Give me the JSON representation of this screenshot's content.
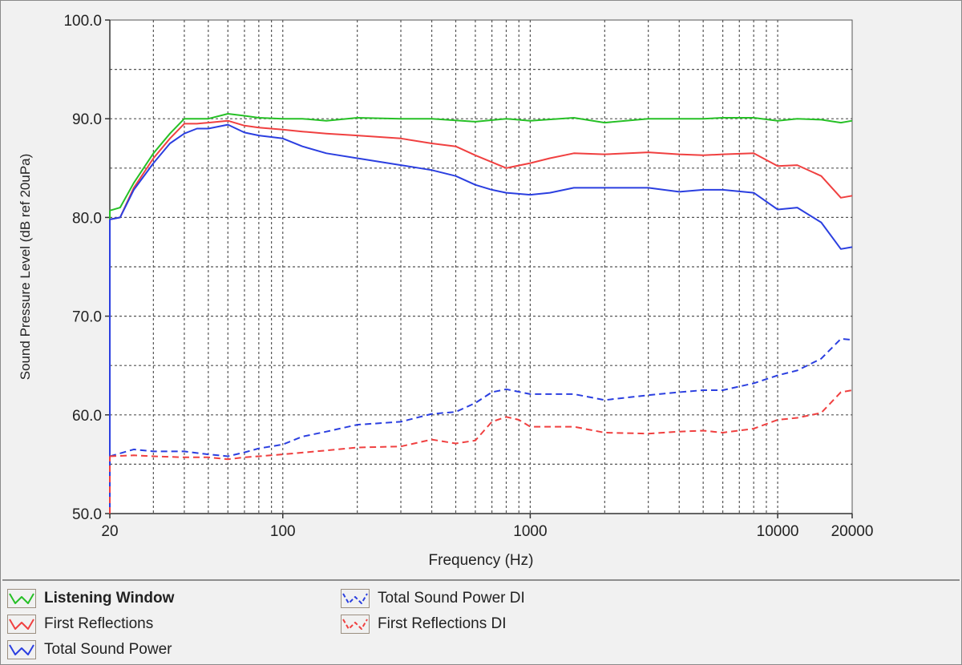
{
  "chart_data": {
    "type": "line",
    "xlabel": "Frequency (Hz)",
    "ylabel": "Sound Pressure Level (dB ref 20uPa)",
    "xscale": "log",
    "xlim": [
      20,
      20000
    ],
    "ylim": [
      50,
      100
    ],
    "grid": true,
    "legend_position": "bottom",
    "x_ticks": [
      20,
      100,
      1000,
      10000,
      20000
    ],
    "x_tick_labels": [
      "20",
      "100",
      "1000",
      "10000",
      "20000"
    ],
    "y_ticks": [
      50,
      60,
      70,
      80,
      90,
      100
    ],
    "y_tick_labels": [
      "50.0",
      "60.0",
      "70.0",
      "80.0",
      "90.0",
      "100.0"
    ],
    "series": [
      {
        "name": "Listening Window",
        "color": "#26c026",
        "style": "solid",
        "bold_label": true,
        "points": [
          [
            20,
            80.7
          ],
          [
            22,
            81
          ],
          [
            25,
            83.5
          ],
          [
            30,
            86.5
          ],
          [
            35,
            88.5
          ],
          [
            40,
            90
          ],
          [
            45,
            90
          ],
          [
            50,
            90
          ],
          [
            60,
            90.5
          ],
          [
            70,
            90.3
          ],
          [
            80,
            90.1
          ],
          [
            100,
            90
          ],
          [
            120,
            90
          ],
          [
            150,
            89.8
          ],
          [
            200,
            90.1
          ],
          [
            300,
            90
          ],
          [
            400,
            90
          ],
          [
            600,
            89.7
          ],
          [
            800,
            90
          ],
          [
            1000,
            89.8
          ],
          [
            1500,
            90.1
          ],
          [
            2000,
            89.6
          ],
          [
            3000,
            90
          ],
          [
            4000,
            90
          ],
          [
            5000,
            90
          ],
          [
            6000,
            90.1
          ],
          [
            8000,
            90.1
          ],
          [
            10000,
            89.8
          ],
          [
            12000,
            90
          ],
          [
            15000,
            89.9
          ],
          [
            18000,
            89.6
          ],
          [
            20000,
            89.8
          ]
        ]
      },
      {
        "name": "First Reflections",
        "color": "#f04040",
        "style": "solid",
        "bold_label": false,
        "points": [
          [
            20,
            79.8
          ],
          [
            22,
            80
          ],
          [
            25,
            83
          ],
          [
            30,
            86
          ],
          [
            35,
            88
          ],
          [
            40,
            89.5
          ],
          [
            45,
            89.5
          ],
          [
            50,
            89.6
          ],
          [
            60,
            89.8
          ],
          [
            70,
            89.3
          ],
          [
            80,
            89.1
          ],
          [
            100,
            88.9
          ],
          [
            120,
            88.7
          ],
          [
            150,
            88.5
          ],
          [
            200,
            88.3
          ],
          [
            300,
            88
          ],
          [
            400,
            87.5
          ],
          [
            500,
            87.2
          ],
          [
            600,
            86.3
          ],
          [
            800,
            85
          ],
          [
            1000,
            85.5
          ],
          [
            1200,
            86
          ],
          [
            1500,
            86.5
          ],
          [
            2000,
            86.4
          ],
          [
            3000,
            86.6
          ],
          [
            4000,
            86.4
          ],
          [
            5000,
            86.3
          ],
          [
            6000,
            86.4
          ],
          [
            8000,
            86.5
          ],
          [
            10000,
            85.2
          ],
          [
            12000,
            85.3
          ],
          [
            15000,
            84.2
          ],
          [
            18000,
            82
          ],
          [
            20000,
            82.2
          ]
        ]
      },
      {
        "name": "Total Sound Power",
        "color": "#2b3fe0",
        "style": "solid",
        "bold_label": false,
        "points": [
          [
            20,
            79.8
          ],
          [
            22,
            80
          ],
          [
            25,
            82.8
          ],
          [
            30,
            85.5
          ],
          [
            35,
            87.5
          ],
          [
            40,
            88.5
          ],
          [
            45,
            89
          ],
          [
            50,
            89
          ],
          [
            60,
            89.4
          ],
          [
            70,
            88.6
          ],
          [
            80,
            88.3
          ],
          [
            100,
            88
          ],
          [
            120,
            87.2
          ],
          [
            150,
            86.5
          ],
          [
            200,
            86
          ],
          [
            300,
            85.3
          ],
          [
            400,
            84.8
          ],
          [
            500,
            84.2
          ],
          [
            600,
            83.3
          ],
          [
            700,
            82.8
          ],
          [
            800,
            82.5
          ],
          [
            1000,
            82.3
          ],
          [
            1200,
            82.5
          ],
          [
            1500,
            83
          ],
          [
            2000,
            83
          ],
          [
            3000,
            83
          ],
          [
            4000,
            82.6
          ],
          [
            5000,
            82.8
          ],
          [
            6000,
            82.8
          ],
          [
            8000,
            82.5
          ],
          [
            10000,
            80.8
          ],
          [
            12000,
            81
          ],
          [
            15000,
            79.5
          ],
          [
            18000,
            76.8
          ],
          [
            20000,
            77
          ]
        ]
      },
      {
        "name": "Total Sound Power DI",
        "color": "#2b3fe0",
        "style": "dashed",
        "bold_label": false,
        "points": [
          [
            20,
            55.8
          ],
          [
            25,
            56.5
          ],
          [
            30,
            56.3
          ],
          [
            40,
            56.3
          ],
          [
            50,
            56
          ],
          [
            60,
            55.8
          ],
          [
            70,
            56.2
          ],
          [
            80,
            56.6
          ],
          [
            100,
            57
          ],
          [
            120,
            57.8
          ],
          [
            150,
            58.3
          ],
          [
            200,
            59
          ],
          [
            300,
            59.3
          ],
          [
            400,
            60.1
          ],
          [
            500,
            60.3
          ],
          [
            600,
            61.2
          ],
          [
            700,
            62.3
          ],
          [
            800,
            62.6
          ],
          [
            1000,
            62.1
          ],
          [
            1500,
            62.1
          ],
          [
            2000,
            61.5
          ],
          [
            3000,
            62
          ],
          [
            4000,
            62.3
          ],
          [
            5000,
            62.5
          ],
          [
            6000,
            62.5
          ],
          [
            8000,
            63.2
          ],
          [
            10000,
            64
          ],
          [
            12000,
            64.5
          ],
          [
            15000,
            65.7
          ],
          [
            18000,
            67.7
          ],
          [
            20000,
            67.6
          ]
        ]
      },
      {
        "name": "First Reflections DI",
        "color": "#f04040",
        "style": "dashed",
        "bold_label": false,
        "points": [
          [
            20,
            55.8
          ],
          [
            25,
            55.9
          ],
          [
            30,
            55.8
          ],
          [
            40,
            55.7
          ],
          [
            50,
            55.7
          ],
          [
            60,
            55.5
          ],
          [
            70,
            55.7
          ],
          [
            80,
            55.8
          ],
          [
            100,
            56
          ],
          [
            150,
            56.4
          ],
          [
            200,
            56.7
          ],
          [
            300,
            56.8
          ],
          [
            400,
            57.5
          ],
          [
            500,
            57.1
          ],
          [
            600,
            57.4
          ],
          [
            700,
            59.3
          ],
          [
            800,
            59.8
          ],
          [
            900,
            59.5
          ],
          [
            1000,
            58.8
          ],
          [
            1500,
            58.8
          ],
          [
            2000,
            58.2
          ],
          [
            3000,
            58.1
          ],
          [
            4000,
            58.3
          ],
          [
            5000,
            58.4
          ],
          [
            6000,
            58.2
          ],
          [
            8000,
            58.6
          ],
          [
            10000,
            59.5
          ],
          [
            12000,
            59.7
          ],
          [
            15000,
            60.2
          ],
          [
            18000,
            62.3
          ],
          [
            20000,
            62.5
          ]
        ]
      }
    ]
  }
}
